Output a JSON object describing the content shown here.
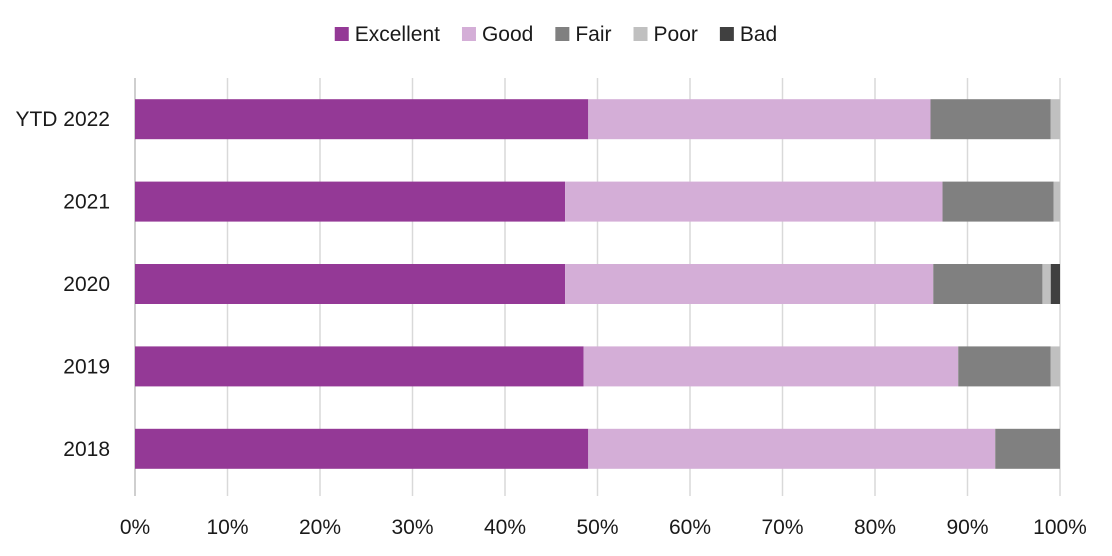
{
  "chart_data": {
    "type": "bar",
    "orientation": "horizontal",
    "stacked": true,
    "normalized": true,
    "categories": [
      "YTD 2022",
      "2021",
      "2020",
      "2019",
      "2018"
    ],
    "series": [
      {
        "name": "Excellent",
        "color": "#943996",
        "values": [
          49,
          46.5,
          46.5,
          48.5,
          49
        ]
      },
      {
        "name": "Good",
        "color": "#d4aed7",
        "values": [
          37,
          40.8,
          39.8,
          40.5,
          44
        ]
      },
      {
        "name": "Fair",
        "color": "#808080",
        "values": [
          13,
          12,
          11.8,
          10,
          7
        ]
      },
      {
        "name": "Poor",
        "color": "#c0c0c0",
        "values": [
          1,
          0.7,
          0.9,
          1,
          0
        ]
      },
      {
        "name": "Bad",
        "color": "#404040",
        "values": [
          0,
          0,
          1,
          0,
          0
        ]
      }
    ],
    "xlim": [
      0,
      100
    ],
    "x_ticks": [
      "0%",
      "10%",
      "20%",
      "30%",
      "40%",
      "50%",
      "60%",
      "70%",
      "80%",
      "90%",
      "100%"
    ],
    "grid": true,
    "legend_position": "top"
  }
}
